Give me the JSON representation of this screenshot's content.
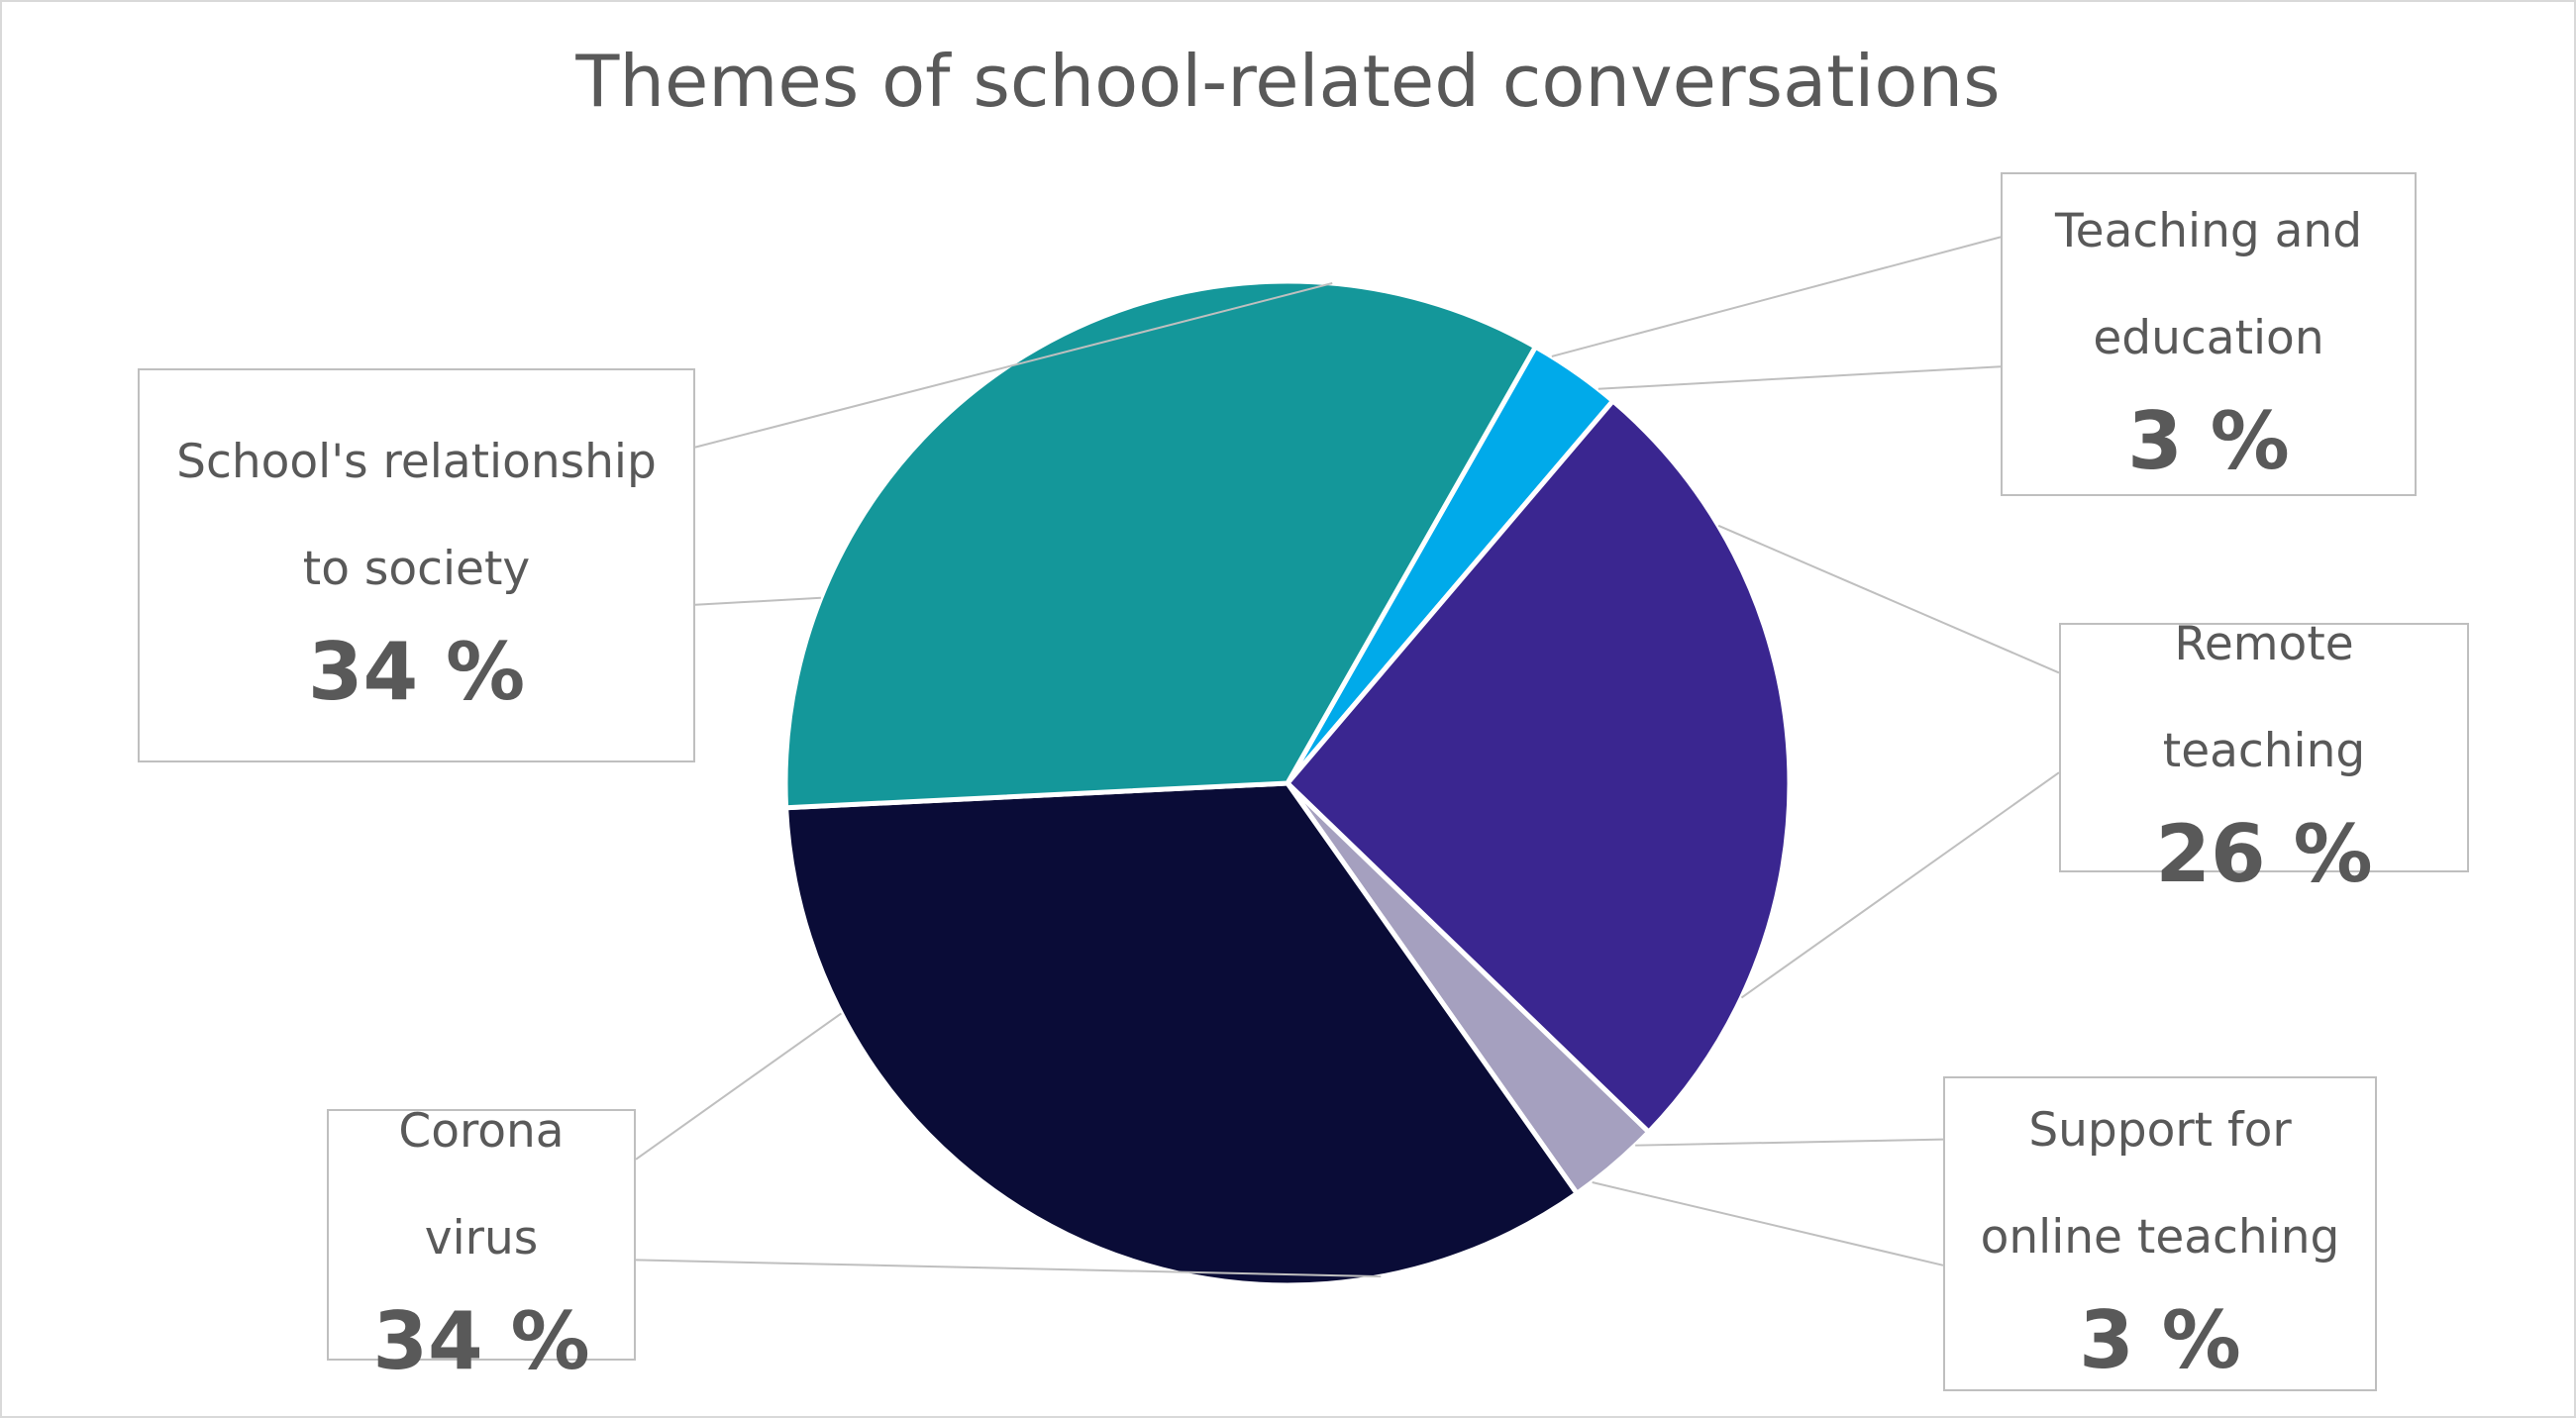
{
  "chart_data": {
    "type": "pie",
    "title": "Themes of school-related conversations",
    "categories": [
      "Teaching and education",
      "Remote teaching",
      "Support for online teaching",
      "Corona virus",
      "School's relationship to society"
    ],
    "values": [
      3,
      26,
      3,
      34,
      34
    ],
    "value_labels": [
      "3 %",
      "26 %",
      "3 %",
      "34 %",
      "34 %"
    ],
    "colors": [
      "#00aaea",
      "#3a2690",
      "#a5a0bf",
      "#0a0c37",
      "#14979a"
    ]
  }
}
